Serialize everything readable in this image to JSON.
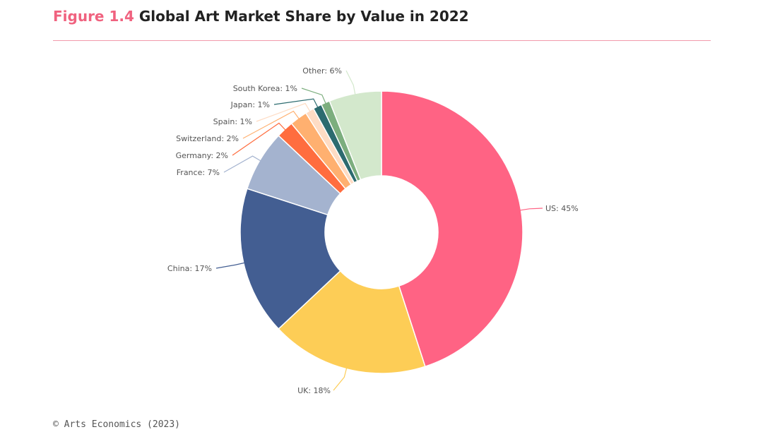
{
  "header": {
    "figure_label": "Figure 1.4",
    "title": "Global Art Market Share by Value in 2022"
  },
  "chart_data": {
    "type": "pie",
    "title": "Global Art Market Share by Value in 2022",
    "variant": "donut",
    "slices": [
      {
        "label": "US",
        "value": 45,
        "display": "US: 45%",
        "color": "#ff6384"
      },
      {
        "label": "UK",
        "value": 18,
        "display": "UK: 18%",
        "color": "#fdcd56"
      },
      {
        "label": "China",
        "value": 17,
        "display": "China: 17%",
        "color": "#435e92"
      },
      {
        "label": "France",
        "value": 7,
        "display": "France: 7%",
        "color": "#a4b3cf"
      },
      {
        "label": "Germany",
        "value": 2,
        "display": "Germany: 2%",
        "color": "#ff6d3f"
      },
      {
        "label": "Switzerland",
        "value": 2,
        "display": "Switzerland: 2%",
        "color": "#ffb070"
      },
      {
        "label": "Spain",
        "value": 1,
        "display": "Spain: 1%",
        "color": "#fedcc4"
      },
      {
        "label": "Japan",
        "value": 1,
        "display": "Japan: 1%",
        "color": "#2c6b6f"
      },
      {
        "label": "South Korea",
        "value": 1,
        "display": "South Korea: 1%",
        "color": "#7cae7e"
      },
      {
        "label": "Other",
        "value": 6,
        "display": "Other: 6%",
        "color": "#d3e8cc"
      }
    ]
  },
  "footer": {
    "source": "© Arts Economics (2023)"
  }
}
